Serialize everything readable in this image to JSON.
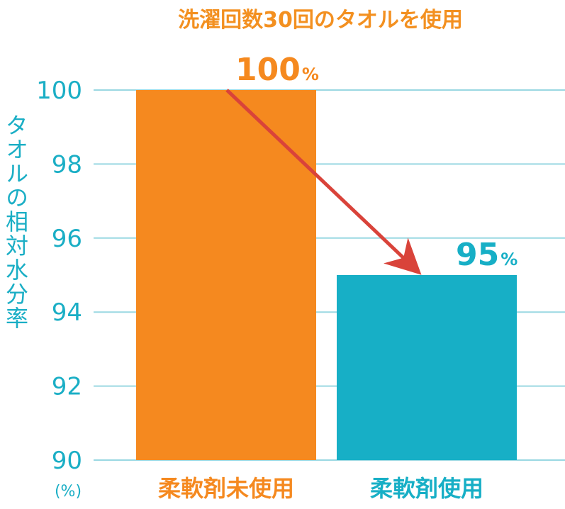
{
  "chart_data": {
    "type": "bar",
    "title": "洗濯回数30回のタオルを使用",
    "ylabel": "タオルの相対水分率",
    "yunit": "(%)",
    "ylim": [
      90,
      100
    ],
    "yticks": [
      90,
      92,
      94,
      96,
      98,
      100
    ],
    "categories": [
      "柔軟剤未使用",
      "柔軟剤使用"
    ],
    "values": [
      100,
      95
    ],
    "value_labels": [
      "100",
      "95"
    ],
    "value_unit": "%",
    "colors": [
      "#f5891f",
      "#17afc6"
    ],
    "annotation": "arrow from top of first bar to top of second bar",
    "grid": true
  }
}
